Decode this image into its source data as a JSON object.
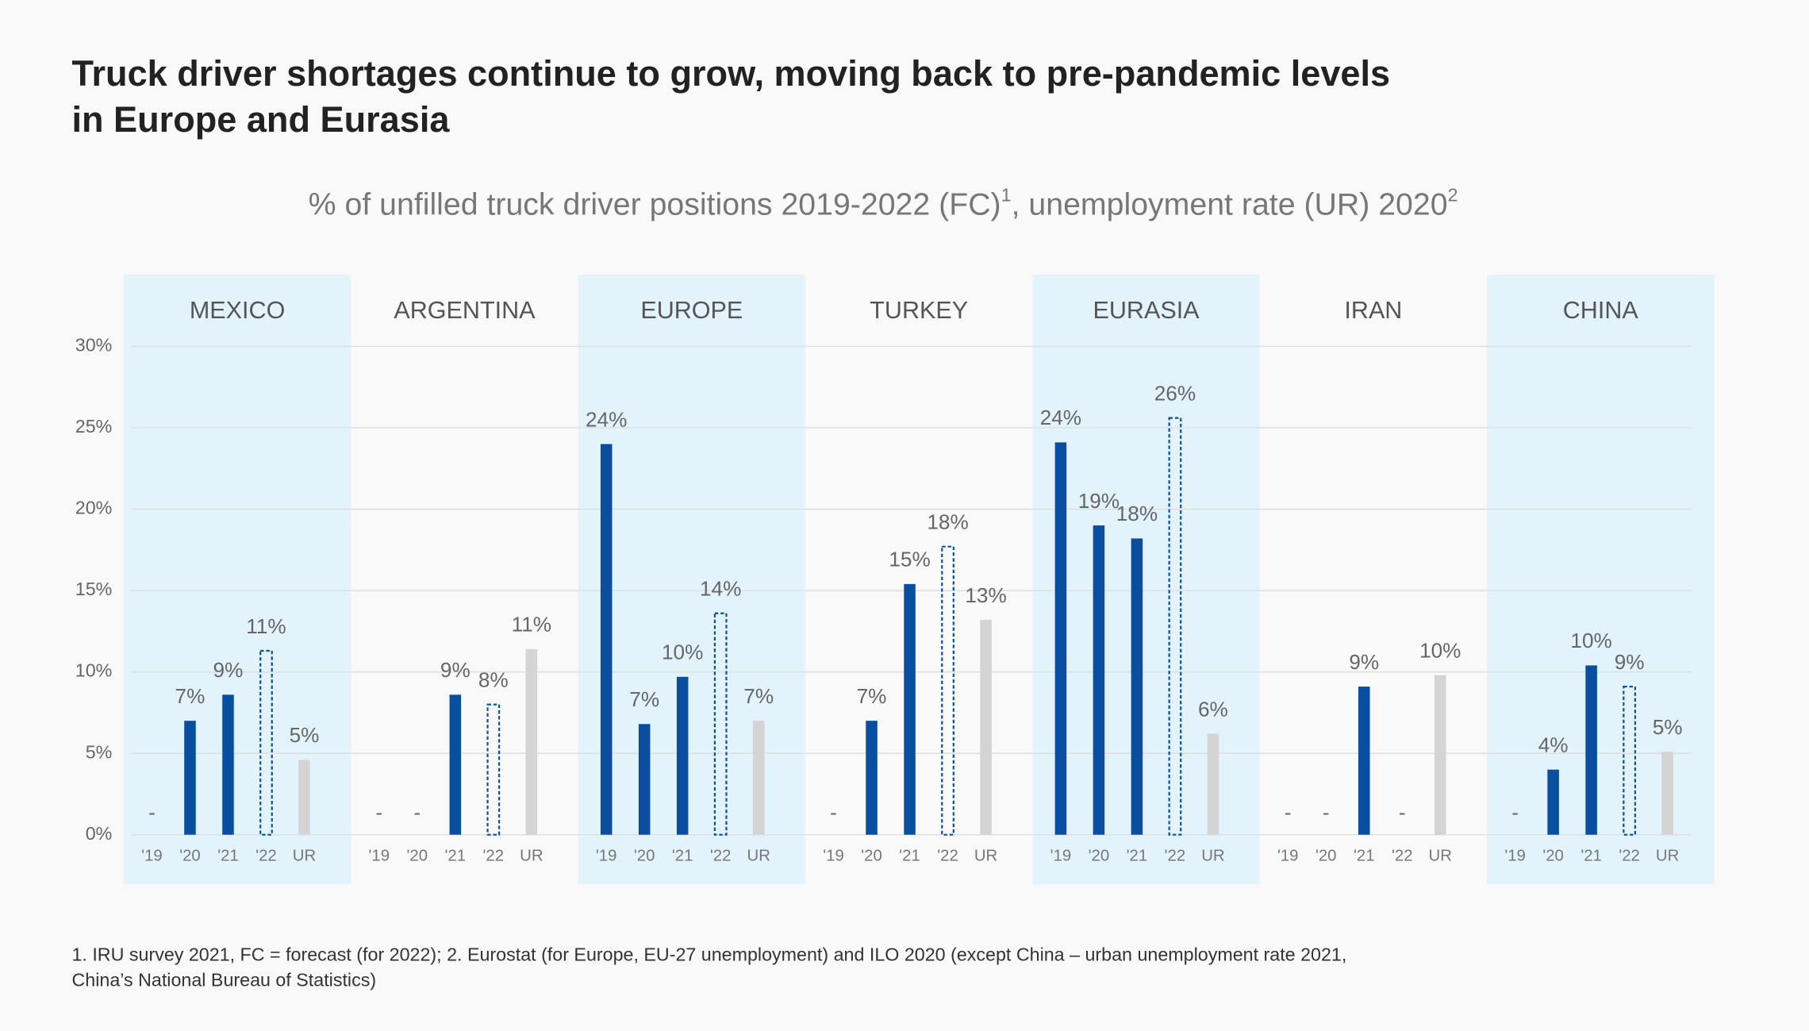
{
  "chart_data": {
    "type": "grouped-panel-bar",
    "title": [
      "Truck driver shortages continue to grow, moving back to pre-pandemic levels",
      "in Europe and Eurasia"
    ],
    "subtitle": [
      "% of unfilled truck driver positions 2019-2022 (FC)",
      "1",
      ", unemployment rate (UR) 2020",
      "2"
    ],
    "categories": [
      "'19",
      "'20",
      "'21",
      "'22",
      "UR"
    ],
    "styles": [
      "filled",
      "filled",
      "filled",
      "outline",
      "filled"
    ],
    "colors": [
      "#0a4ea0",
      "#0a4ea0",
      "#0a4ea0",
      "#0a4ea0",
      "#d4d4d4"
    ],
    "panel_shade": "#e2f3fb",
    "panels": [
      {
        "name": "MEXICO",
        "shaded": true,
        "values": [
          null,
          7,
          8.6,
          11.3,
          4.6
        ],
        "value_labels": [
          "-",
          "7%",
          "9%",
          "11%",
          "5%"
        ]
      },
      {
        "name": "ARGENTINA",
        "shaded": false,
        "values": [
          null,
          null,
          8.6,
          8,
          11.4
        ],
        "value_labels": [
          "-",
          "-",
          "9%",
          "8%",
          "11%"
        ]
      },
      {
        "name": "EUROPE",
        "shaded": true,
        "values": [
          24,
          6.8,
          9.7,
          13.6,
          7
        ],
        "value_labels": [
          "24%",
          "7%",
          "10%",
          "14%",
          "7%"
        ]
      },
      {
        "name": "TURKEY",
        "shaded": false,
        "values": [
          null,
          7,
          15.4,
          17.7,
          13.2
        ],
        "value_labels": [
          "-",
          "7%",
          "15%",
          "18%",
          "13%"
        ]
      },
      {
        "name": "EURASIA",
        "shaded": true,
        "values": [
          24.1,
          19,
          18.2,
          25.6,
          6.2
        ],
        "value_labels": [
          "24%",
          "19%",
          "18%",
          "26%",
          "6%"
        ]
      },
      {
        "name": "IRAN",
        "shaded": false,
        "values": [
          null,
          null,
          9.1,
          null,
          9.8
        ],
        "value_labels": [
          "-",
          "-",
          "9%",
          "-",
          "10%"
        ]
      },
      {
        "name": "CHINA",
        "shaded": true,
        "values": [
          null,
          4,
          10.4,
          9.1,
          5.1
        ],
        "value_labels": [
          "-",
          "4%",
          "10%",
          "9%",
          "5%"
        ]
      }
    ],
    "ylim": [
      0,
      30
    ],
    "yticks": [
      {
        "value": 0,
        "label": "0%"
      },
      {
        "value": 5,
        "label": "5%"
      },
      {
        "value": 10,
        "label": "10%"
      },
      {
        "value": 15,
        "label": "15%"
      },
      {
        "value": 20,
        "label": "20%"
      },
      {
        "value": 25,
        "label": "25%"
      },
      {
        "value": 30,
        "label": "30%"
      }
    ],
    "grid": true,
    "footnote": [
      "1. IRU survey 2021, FC = forecast (for 2022); 2. Eurostat (for Europe, EU-27 unemployment) and ILO 2020 (except China –  urban unemployment rate 2021,",
      "China’s National Bureau of Statistics)"
    ]
  }
}
